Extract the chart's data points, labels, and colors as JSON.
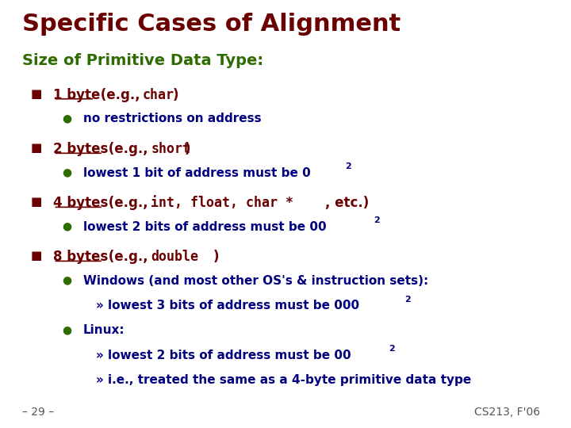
{
  "title": "Specific Cases of Alignment",
  "title_color": "#6B0000",
  "bg_color": "#FFFFFF",
  "subtitle": "Size of Primitive Data Type:",
  "subtitle_color": "#2E6B00",
  "footer_left": "– 29 –",
  "footer_right": "CS213, F'06",
  "footer_color": "#555555",
  "dark_red": "#6B0000",
  "dark_green": "#2E6B00",
  "bullet_sq_color": "#6B0000",
  "bullet_dot_color": "#2E6B00",
  "navy": "#000080"
}
